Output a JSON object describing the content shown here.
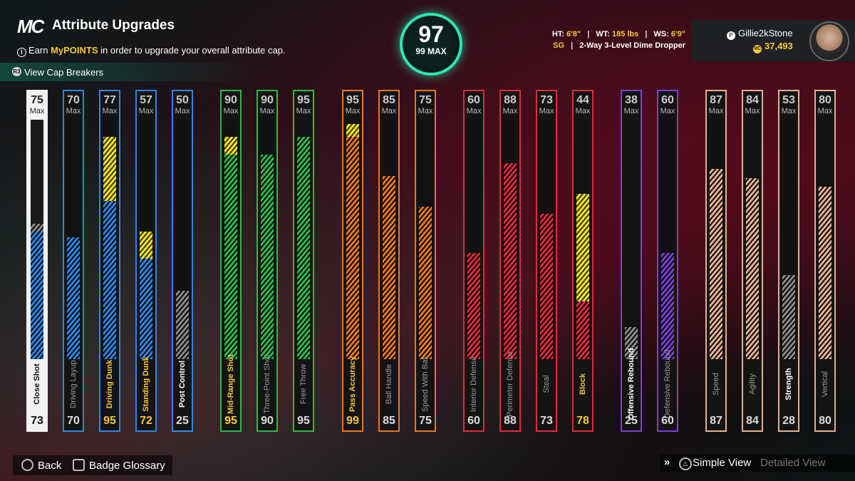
{
  "header": {
    "logo": "MC",
    "title": "Attribute Upgrades",
    "info_prefix": "Earn ",
    "info_highlight": "MyPOINTS",
    "info_suffix": " in order to upgrade your overall attribute cap.",
    "cap_breakers_label": "View Cap Breakers",
    "cap_breakers_glyph": "R3"
  },
  "overall": {
    "value": "97",
    "max_label": "99 MAX"
  },
  "player": {
    "ht_label": "HT:",
    "ht": "6'8\"",
    "wt_label": "WT:",
    "wt": "185 lbs",
    "ws_label": "WS:",
    "ws": "6'9\"",
    "position": "SG",
    "archetype": "2-Way 3-Level Dime Dropper",
    "gamertag": "Gillie2kStone",
    "vc": "37,493"
  },
  "attributes": [
    {
      "name": "Close Shot",
      "cap": "75",
      "value": "73",
      "fill": 0.71,
      "boost_to": 0.73,
      "color": "#2f86e6",
      "selected": true,
      "dim": false,
      "gold": false
    },
    {
      "name": "Driving Layup",
      "cap": "70",
      "value": "70",
      "fill": 0.68,
      "color": "#2f86e6",
      "dim": true,
      "gold": false
    },
    {
      "name": "Driving Dunk",
      "cap": "77",
      "value": "95",
      "fill": 0.88,
      "boost": [
        0.88,
        1.24
      ],
      "color": "#2f86e6",
      "gold": true
    },
    {
      "name": "Standing Dunk",
      "cap": "57",
      "value": "72",
      "fill": 0.56,
      "boost": [
        0.56,
        0.71
      ],
      "color": "#2f86e6",
      "gold": true
    },
    {
      "name": "Post Control",
      "cap": "50",
      "value": "25",
      "fill": 0.38,
      "color": "#2f86e6",
      "gray": true,
      "gold": false
    },
    {
      "name": "Mid-Range Shot",
      "cap": "90",
      "value": "95",
      "fill": 1.14,
      "boost": [
        1.14,
        1.24
      ],
      "color": "#2fb84a",
      "gold": true
    },
    {
      "name": "Three-Point Shot",
      "cap": "90",
      "value": "90",
      "fill": 1.14,
      "color": "#2fb84a",
      "dim": true,
      "gold": false
    },
    {
      "name": "Free Throw",
      "cap": "95",
      "value": "95",
      "fill": 1.24,
      "color": "#2fb84a",
      "dim": true,
      "gold": false
    },
    {
      "name": "Pass Accuracy",
      "cap": "95",
      "value": "99",
      "fill": 1.24,
      "boost": [
        1.24,
        1.31
      ],
      "color": "#e87822",
      "gold": true
    },
    {
      "name": "Ball Handle",
      "cap": "85",
      "value": "85",
      "fill": 1.02,
      "color": "#e87822",
      "dim": true,
      "gold": false
    },
    {
      "name": "Speed With Ball",
      "cap": "75",
      "value": "75",
      "fill": 0.85,
      "color": "#e87822",
      "dim": true,
      "gold": false
    },
    {
      "name": "Interior Defense",
      "cap": "60",
      "value": "60",
      "fill": 0.59,
      "color": "#e02a3c",
      "dim": true,
      "gold": false
    },
    {
      "name": "Perimeter Defense",
      "cap": "88",
      "value": "88",
      "fill": 1.09,
      "color": "#e02a3c",
      "dim": true,
      "gold": false
    },
    {
      "name": "Steal",
      "cap": "73",
      "value": "73",
      "fill": 0.81,
      "color": "#e02a3c",
      "dim": true,
      "gold": false
    },
    {
      "name": "Block",
      "cap": "44",
      "value": "78",
      "fill": 0.32,
      "boost": [
        0.32,
        0.92
      ],
      "color": "#e02a3c",
      "gold": true
    },
    {
      "name": "Offensive Rebound",
      "cap": "38",
      "value": "25",
      "fill": 0.18,
      "color": "#7a3fd6",
      "gray": true,
      "gold": false
    },
    {
      "name": "Defensive Rebound",
      "cap": "60",
      "value": "60",
      "fill": 0.59,
      "color": "#7a3fd6",
      "dim": true,
      "gold": false
    },
    {
      "name": "Speed",
      "cap": "87",
      "value": "87",
      "fill": 1.06,
      "color": "#e6b08f",
      "dim": true,
      "gold": false
    },
    {
      "name": "Agility",
      "cap": "84",
      "value": "84",
      "fill": 1.01,
      "color": "#e6b08f",
      "dim": true,
      "gold": false
    },
    {
      "name": "Strength",
      "cap": "53",
      "value": "28",
      "fill": 0.47,
      "color": "#e6b08f",
      "gray": true,
      "gold": false
    },
    {
      "name": "Vertical",
      "cap": "80",
      "value": "80",
      "fill": 0.96,
      "color": "#e6b08f",
      "dim": true,
      "gold": false
    }
  ],
  "footer": {
    "back_label": "Back",
    "glossary_label": "Badge Glossary",
    "simple_view_label": "Simple View",
    "detailed_view_label": "Detailed View"
  },
  "colors": {
    "accent_teal": "#2ee6b5",
    "gold": "#f5c83a"
  }
}
